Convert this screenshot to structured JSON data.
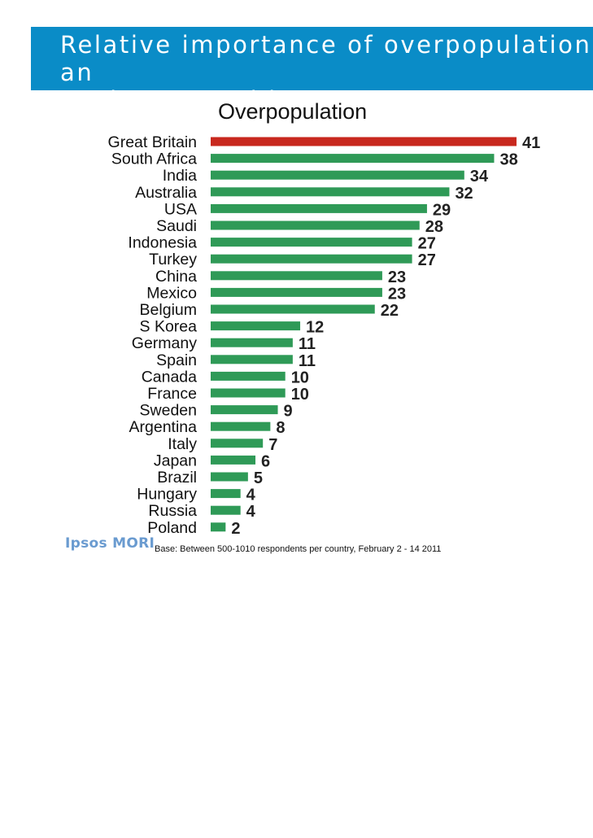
{
  "header": {
    "title": "Relative importance of overpopulation as an\nenvironmental issue"
  },
  "colors": {
    "header_bg": "#0a8cc7",
    "highlight": "#c8281e",
    "bar": "#2f9a57"
  },
  "chart_data": {
    "type": "bar",
    "orientation": "horizontal",
    "title": "Overpopulation",
    "categories": [
      "Great Britain",
      "South Africa",
      "India",
      "Australia",
      "USA",
      "Saudi",
      "Indonesia",
      "Turkey",
      "China",
      "Mexico",
      "Belgium",
      "S Korea",
      "Germany",
      "Spain",
      "Canada",
      "France",
      "Sweden",
      "Argentina",
      "Italy",
      "Japan",
      "Brazil",
      "Hungary",
      "Russia",
      "Poland"
    ],
    "values": [
      41,
      38,
      34,
      32,
      29,
      28,
      27,
      27,
      23,
      23,
      22,
      12,
      11,
      11,
      10,
      10,
      9,
      8,
      7,
      6,
      5,
      4,
      4,
      2
    ],
    "highlight_category": "Great Britain",
    "xlim": [
      0,
      41
    ]
  },
  "footer": {
    "logo": "Ipsos MORI",
    "base_note": "Base: Between 500-1010 respondents per country, February 2 - 14 2011"
  }
}
